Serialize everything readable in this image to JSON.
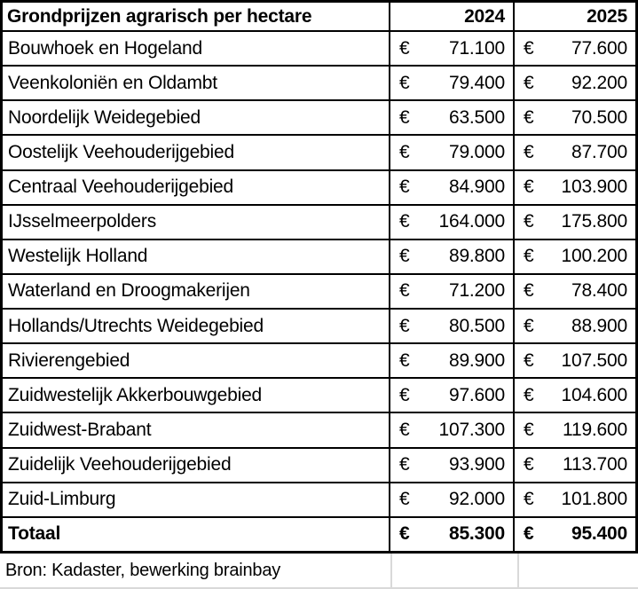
{
  "chart_data": {
    "type": "table",
    "title": "Grondprijzen agrarisch per hectare",
    "columns": [
      "2024",
      "2025"
    ],
    "currency": "€",
    "rows": [
      [
        "Bouwhoek en Hogeland",
        71100,
        77600
      ],
      [
        "Veenkoloniën en Oldambt",
        79400,
        92200
      ],
      [
        "Noordelijk Weidegebied",
        63500,
        70500
      ],
      [
        "Oostelijk Veehouderijgebied",
        79000,
        87700
      ],
      [
        "Centraal Veehouderijgebied",
        84900,
        103900
      ],
      [
        "IJsselmeerpolders",
        164000,
        175800
      ],
      [
        "Westelijk Holland",
        89800,
        100200
      ],
      [
        "Waterland en Droogmakerijen",
        71200,
        78400
      ],
      [
        "Hollands/Utrechts Weidegebied",
        80500,
        88900
      ],
      [
        "Rivierengebied",
        89900,
        107500
      ],
      [
        "Zuidwestelijk Akkerbouwgebied",
        97600,
        104600
      ],
      [
        "Zuidwest-Brabant",
        107300,
        119600
      ],
      [
        "Zuidelijk Veehouderijgebied",
        93900,
        113700
      ],
      [
        "Zuid-Limburg",
        92000,
        101800
      ]
    ],
    "total": [
      "Totaal",
      85300,
      95400
    ],
    "source": "Bron: Kadaster, bewerking brainbay"
  },
  "display": {
    "euro": "€",
    "rows": [
      {
        "name": "Bouwhoek en Hogeland",
        "y2024": "71.100",
        "y2025": "77.600"
      },
      {
        "name": "Veenkoloniën en Oldambt",
        "y2024": "79.400",
        "y2025": "92.200"
      },
      {
        "name": "Noordelijk Weidegebied",
        "y2024": "63.500",
        "y2025": "70.500"
      },
      {
        "name": "Oostelijk Veehouderijgebied",
        "y2024": "79.000",
        "y2025": "87.700"
      },
      {
        "name": "Centraal Veehouderijgebied",
        "y2024": "84.900",
        "y2025": "103.900"
      },
      {
        "name": "IJsselmeerpolders",
        "y2024": "164.000",
        "y2025": "175.800"
      },
      {
        "name": "Westelijk Holland",
        "y2024": "89.800",
        "y2025": "100.200"
      },
      {
        "name": "Waterland en Droogmakerijen",
        "y2024": "71.200",
        "y2025": "78.400"
      },
      {
        "name": "Hollands/Utrechts Weidegebied",
        "y2024": "80.500",
        "y2025": "88.900"
      },
      {
        "name": "Rivierengebied",
        "y2024": "89.900",
        "y2025": "107.500"
      },
      {
        "name": "Zuidwestelijk Akkerbouwgebied",
        "y2024": "97.600",
        "y2025": "104.600"
      },
      {
        "name": "Zuidwest-Brabant",
        "y2024": "107.300",
        "y2025": "119.600"
      },
      {
        "name": "Zuidelijk Veehouderijgebied",
        "y2024": "93.900",
        "y2025": "113.700"
      },
      {
        "name": "Zuid-Limburg",
        "y2024": "92.000",
        "y2025": "101.800"
      }
    ],
    "total": {
      "name": "Totaal",
      "y2024": "85.300",
      "y2025": "95.400"
    },
    "source": "Bron: Kadaster, bewerking brainbay"
  },
  "colors": {
    "border": "#000000",
    "gridline": "#d9d9d9",
    "text": "#000000",
    "background": "#ffffff"
  }
}
